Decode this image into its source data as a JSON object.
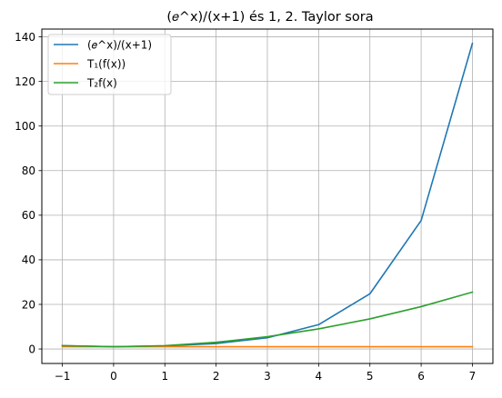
{
  "chart_data": {
    "type": "line",
    "title": "(𝑒^x)/(x+1) és 1, 2. Taylor sora",
    "xlabel": "",
    "ylabel": "",
    "x": [
      -1,
      0,
      1,
      2,
      3,
      4,
      5,
      6,
      7
    ],
    "xlim": [
      -1.4,
      7.4
    ],
    "ylim": [
      -6.5,
      143.5
    ],
    "x_ticks": [
      -1,
      0,
      1,
      2,
      3,
      4,
      5,
      6,
      7
    ],
    "y_ticks": [
      0,
      20,
      40,
      60,
      80,
      100,
      120,
      140
    ],
    "x_tick_labels": [
      "−1",
      "0",
      "1",
      "2",
      "3",
      "4",
      "5",
      "6",
      "7"
    ],
    "y_tick_labels": [
      "0",
      "20",
      "40",
      "60",
      "80",
      "100",
      "120",
      "140"
    ],
    "grid": true,
    "legend_placement": "top-left",
    "series": [
      {
        "name": "(𝑒^x)/(x+1)",
        "color": "#1f77b4",
        "values": [
          1.5,
          1.0,
          1.36,
          2.46,
          5.02,
          10.92,
          24.74,
          57.63,
          137.08
        ]
      },
      {
        "name": "T₁(f(x))",
        "color": "#ff7f0e",
        "values": [
          1.0,
          1.0,
          1.0,
          1.0,
          1.0,
          1.0,
          1.0,
          1.0,
          1.0
        ]
      },
      {
        "name": "T₂f(x)",
        "color": "#2ca02c",
        "values": [
          1.5,
          1.0,
          1.5,
          3.0,
          5.5,
          9.0,
          13.5,
          19.0,
          25.5
        ]
      }
    ]
  }
}
